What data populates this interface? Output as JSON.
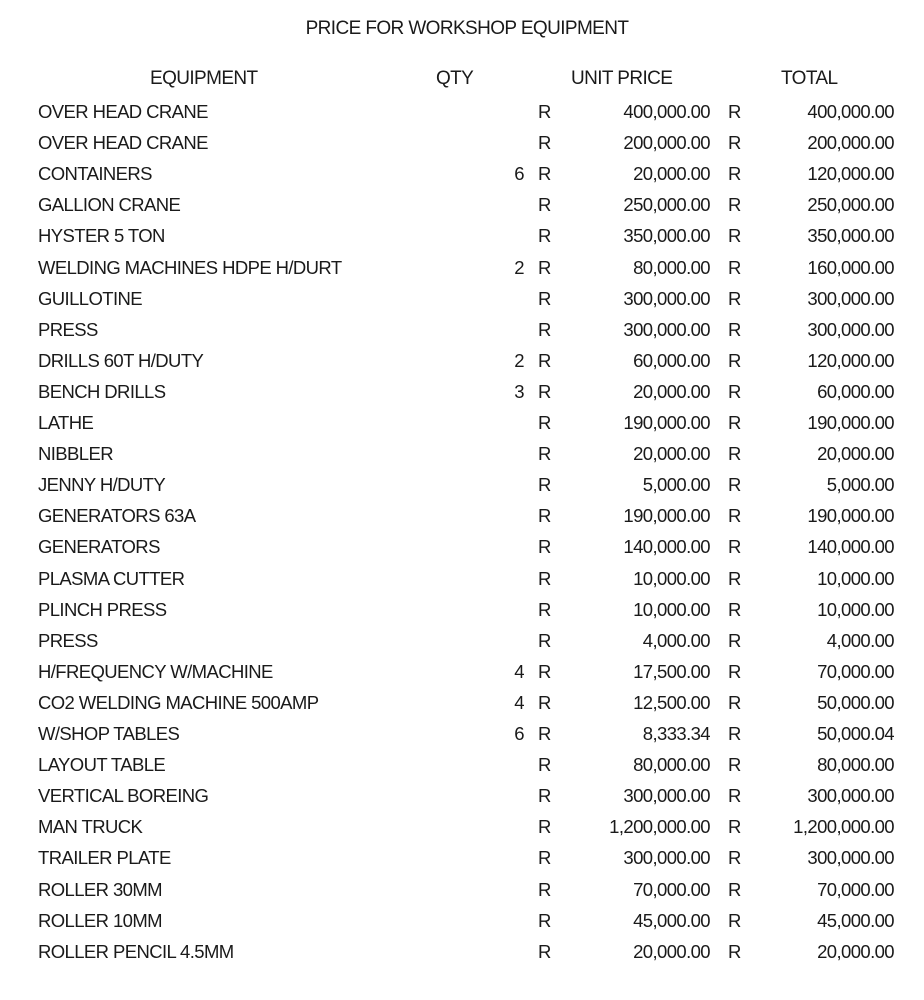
{
  "title": "PRICE FOR WORKSHOP EQUIPMENT",
  "headers": {
    "equipment": "EQUIPMENT",
    "qty": "QTY",
    "unit_price": "UNIT PRICE",
    "total": "TOTAL"
  },
  "currency": "R",
  "rows": [
    {
      "name": "OVER HEAD CRANE",
      "qty": "",
      "unit_price": "400,000.00",
      "total": "400,000.00"
    },
    {
      "name": "OVER HEAD CRANE",
      "qty": "",
      "unit_price": "200,000.00",
      "total": "200,000.00"
    },
    {
      "name": "CONTAINERS",
      "qty": "6",
      "unit_price": "20,000.00",
      "total": "120,000.00"
    },
    {
      "name": "GALLION CRANE",
      "qty": "",
      "unit_price": "250,000.00",
      "total": "250,000.00"
    },
    {
      "name": "HYSTER 5 TON",
      "qty": "",
      "unit_price": "350,000.00",
      "total": "350,000.00"
    },
    {
      "name": "WELDING MACHINES HDPE H/DURT",
      "qty": "2",
      "unit_price": "80,000.00",
      "total": "160,000.00"
    },
    {
      "name": "GUILLOTINE",
      "qty": "",
      "unit_price": "300,000.00",
      "total": "300,000.00"
    },
    {
      "name": "PRESS",
      "qty": "",
      "unit_price": "300,000.00",
      "total": "300,000.00"
    },
    {
      "name": "DRILLS 60T H/DUTY",
      "qty": "2",
      "unit_price": "60,000.00",
      "total": "120,000.00"
    },
    {
      "name": "BENCH DRILLS",
      "qty": "3",
      "unit_price": "20,000.00",
      "total": "60,000.00"
    },
    {
      "name": "LATHE",
      "qty": "",
      "unit_price": "190,000.00",
      "total": "190,000.00"
    },
    {
      "name": "NIBBLER",
      "qty": "",
      "unit_price": "20,000.00",
      "total": "20,000.00"
    },
    {
      "name": "JENNY H/DUTY",
      "qty": "",
      "unit_price": "5,000.00",
      "total": "5,000.00"
    },
    {
      "name": "GENERATORS 63A",
      "qty": "",
      "unit_price": "190,000.00",
      "total": "190,000.00"
    },
    {
      "name": "GENERATORS",
      "qty": "",
      "unit_price": "140,000.00",
      "total": "140,000.00"
    },
    {
      "name": "PLASMA CUTTER",
      "qty": "",
      "unit_price": "10,000.00",
      "total": "10,000.00"
    },
    {
      "name": "PLINCH PRESS",
      "qty": "",
      "unit_price": "10,000.00",
      "total": "10,000.00"
    },
    {
      "name": "PRESS",
      "qty": "",
      "unit_price": "4,000.00",
      "total": "4,000.00"
    },
    {
      "name": "H/FREQUENCY W/MACHINE",
      "qty": "4",
      "unit_price": "17,500.00",
      "total": "70,000.00"
    },
    {
      "name": "CO2 WELDING MACHINE 500AMP",
      "qty": "4",
      "unit_price": "12,500.00",
      "total": "50,000.00"
    },
    {
      "name": "W/SHOP TABLES",
      "qty": "6",
      "unit_price": "8,333.34",
      "total": "50,000.04"
    },
    {
      "name": "LAYOUT TABLE",
      "qty": "",
      "unit_price": "80,000.00",
      "total": "80,000.00"
    },
    {
      "name": "VERTICAL BOREING",
      "qty": "",
      "unit_price": "300,000.00",
      "total": "300,000.00"
    },
    {
      "name": "MAN TRUCK",
      "qty": "",
      "unit_price": "1,200,000.00",
      "total": "1,200,000.00"
    },
    {
      "name": "TRAILER PLATE",
      "qty": "",
      "unit_price": "300,000.00",
      "total": "300,000.00"
    },
    {
      "name": "ROLLER 30MM",
      "qty": "",
      "unit_price": "70,000.00",
      "total": "70,000.00"
    },
    {
      "name": "ROLLER 10MM",
      "qty": "",
      "unit_price": "45,000.00",
      "total": "45,000.00"
    },
    {
      "name": "ROLLER PENCIL 4.5MM",
      "qty": "",
      "unit_price": "20,000.00",
      "total": "20,000.00"
    }
  ]
}
